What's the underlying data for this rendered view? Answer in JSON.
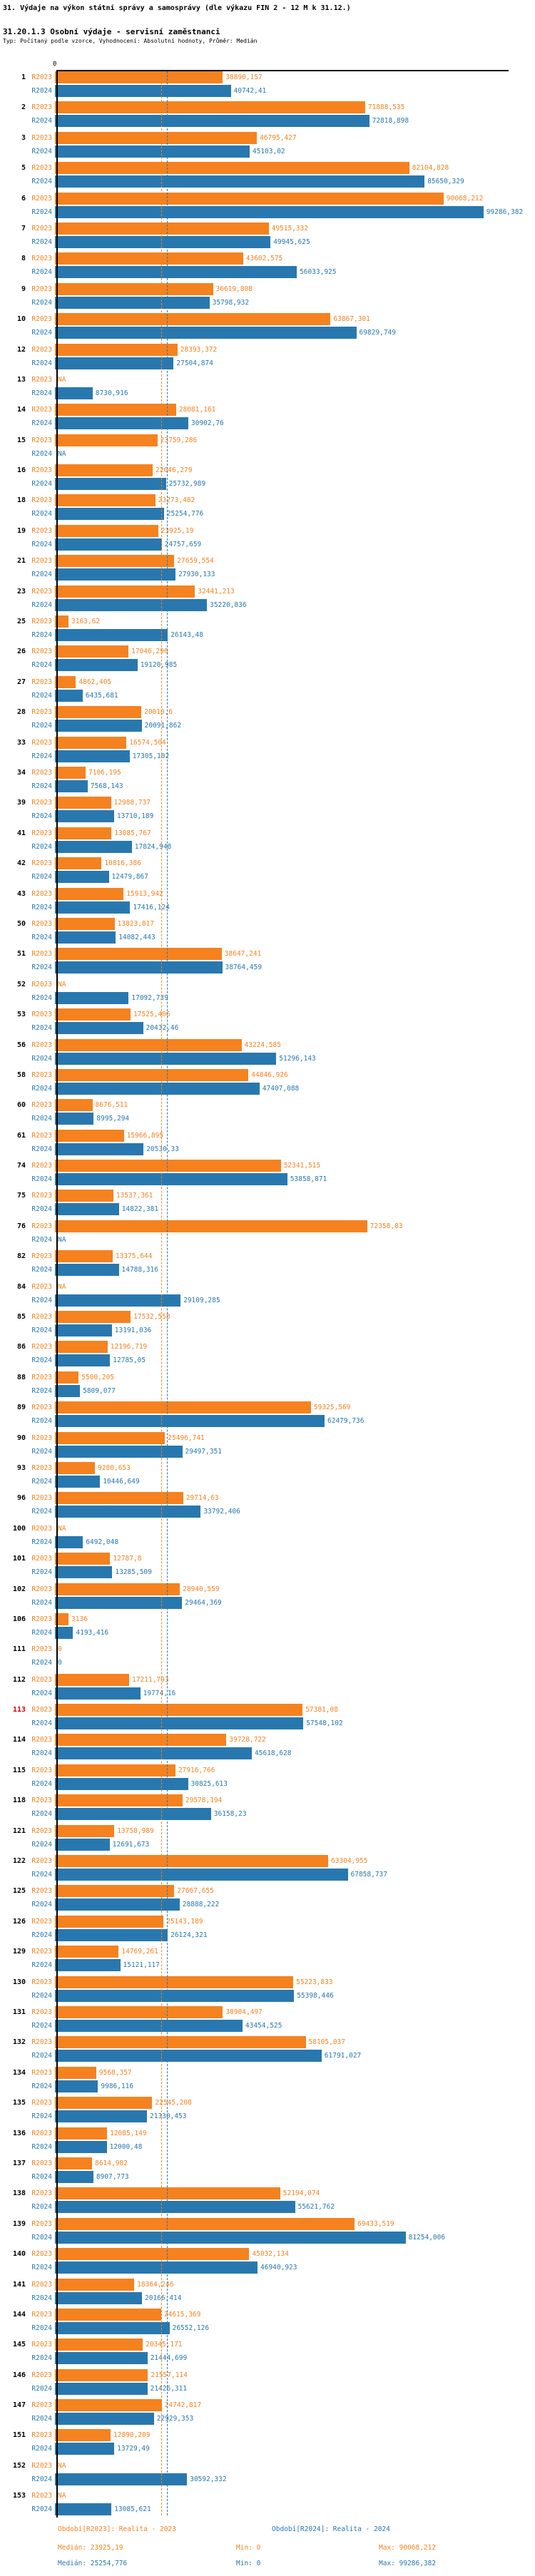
{
  "header": {
    "title": "31. Výdaje na výkon státní správy a samosprávy (dle výkazu FIN 2 - 12 M k 31.12.)",
    "subtitle": "31.20.1.3 Osobní výdaje - servisní zaměstnanci",
    "meta": "Typ: Počítaný podle vzorce, Vyhodnocení: Absolutní hodnoty, Průměr: Medián"
  },
  "chart_data": {
    "type": "bar",
    "orientation": "horizontal",
    "title": "31.20.1.3 Osobní výdaje - servisní zaměstnanci",
    "axis_zero_label": "0",
    "xlim": [
      0,
      100000
    ],
    "grid": false,
    "legend_position": "bottom",
    "series_labels": [
      "R2023",
      "R2024"
    ],
    "colors": {
      "r2023": "#f5821f",
      "r2024": "#2878af",
      "highlight": "#cc0000",
      "axis": "#000000"
    },
    "medians": {
      "r2023": 23925.19,
      "r2024": 25254.776
    },
    "highlight_rows": [
      "113"
    ],
    "na_text": "NA",
    "rows": [
      {
        "n": "1",
        "r2023": "38890,157",
        "r2024": "40742,41"
      },
      {
        "n": "2",
        "r2023": "71888,535",
        "r2024": "72818,898"
      },
      {
        "n": "3",
        "r2023": "46795,427",
        "r2024": "45103,02"
      },
      {
        "n": "5",
        "r2023": "82104,828",
        "r2024": "85650,329"
      },
      {
        "n": "6",
        "r2023": "90068,212",
        "r2024": "99286,382"
      },
      {
        "n": "7",
        "r2023": "49515,332",
        "r2024": "49945,625"
      },
      {
        "n": "8",
        "r2023": "43602,575",
        "r2024": "56033,925"
      },
      {
        "n": "9",
        "r2023": "36619,808",
        "r2024": "35798,932"
      },
      {
        "n": "10",
        "r2023": "63867,301",
        "r2024": "69829,749"
      },
      {
        "n": "12",
        "r2023": "28393,372",
        "r2024": "27504,874"
      },
      {
        "n": "13",
        "r2023": "NA",
        "r2024": "8730,916"
      },
      {
        "n": "14",
        "r2023": "28081,161",
        "r2024": "30902,76"
      },
      {
        "n": "15",
        "r2023": "23759,286",
        "r2024": "NA"
      },
      {
        "n": "16",
        "r2023": "22646,279",
        "r2024": "25732,989"
      },
      {
        "n": "18",
        "r2023": "23273,482",
        "r2024": "25254,776"
      },
      {
        "n": "19",
        "r2023": "23925,19",
        "r2024": "24757,659"
      },
      {
        "n": "21",
        "r2023": "27659,554",
        "r2024": "27930,133"
      },
      {
        "n": "23",
        "r2023": "32441,213",
        "r2024": "35220,836"
      },
      {
        "n": "25",
        "r2023": "3163,62",
        "r2024": "26143,48"
      },
      {
        "n": "26",
        "r2023": "17046,296",
        "r2024": "19120,985"
      },
      {
        "n": "27",
        "r2023": "4862,405",
        "r2024": "6435,681"
      },
      {
        "n": "28",
        "r2023": "20010,6",
        "r2024": "20091,862"
      },
      {
        "n": "33",
        "r2023": "16574,504",
        "r2024": "17305,102"
      },
      {
        "n": "34",
        "r2023": "7106,195",
        "r2024": "7568,143"
      },
      {
        "n": "39",
        "r2023": "12988,737",
        "r2024": "13710,189"
      },
      {
        "n": "41",
        "r2023": "13085,767",
        "r2024": "17824,948"
      },
      {
        "n": "42",
        "r2023": "10816,386",
        "r2024": "12479,867"
      },
      {
        "n": "43",
        "r2023": "15913,942",
        "r2024": "17416,124"
      },
      {
        "n": "50",
        "r2023": "13823,817",
        "r2024": "14082,443"
      },
      {
        "n": "51",
        "r2023": "38647,241",
        "r2024": "38764,459"
      },
      {
        "n": "52",
        "r2023": "NA",
        "r2024": "17092,739"
      },
      {
        "n": "53",
        "r2023": "17525,406",
        "r2024": "20432,46"
      },
      {
        "n": "56",
        "r2023": "43224,585",
        "r2024": "51296,143"
      },
      {
        "n": "58",
        "r2023": "44846,926",
        "r2024": "47407,088"
      },
      {
        "n": "60",
        "r2023": "8676,511",
        "r2024": "8995,294"
      },
      {
        "n": "61",
        "r2023": "15966,895",
        "r2024": "20530,33"
      },
      {
        "n": "74",
        "r2023": "52341,515",
        "r2024": "53858,871"
      },
      {
        "n": "75",
        "r2023": "13537,361",
        "r2024": "14822,381"
      },
      {
        "n": "76",
        "r2023": "72358,83",
        "r2024": "NA"
      },
      {
        "n": "82",
        "r2023": "13375,644",
        "r2024": "14788,316"
      },
      {
        "n": "84",
        "r2023": "NA",
        "r2024": "29109,285"
      },
      {
        "n": "85",
        "r2023": "17532,558",
        "r2024": "13191,036"
      },
      {
        "n": "86",
        "r2023": "12196,719",
        "r2024": "12785,05"
      },
      {
        "n": "88",
        "r2023": "5500,205",
        "r2024": "5809,077"
      },
      {
        "n": "89",
        "r2023": "59325,569",
        "r2024": "62479,736"
      },
      {
        "n": "90",
        "r2023": "25496,741",
        "r2024": "29497,351"
      },
      {
        "n": "93",
        "r2023": "9280,653",
        "r2024": "10446,649"
      },
      {
        "n": "96",
        "r2023": "29714,63",
        "r2024": "33792,406"
      },
      {
        "n": "100",
        "r2023": "NA",
        "r2024": "6492,048"
      },
      {
        "n": "101",
        "r2023": "12787,8",
        "r2024": "13285,509"
      },
      {
        "n": "102",
        "r2023": "28940,559",
        "r2024": "29464,369"
      },
      {
        "n": "106",
        "r2023": "3136",
        "r2024": "4193,416"
      },
      {
        "n": "111",
        "r2023": "0",
        "r2024": "0"
      },
      {
        "n": "112",
        "r2023": "17211,793",
        "r2024": "19774,16"
      },
      {
        "n": "113",
        "r2023": "57381,08",
        "r2024": "57548,102"
      },
      {
        "n": "114",
        "r2023": "39728,722",
        "r2024": "45618,628"
      },
      {
        "n": "115",
        "r2023": "27916,766",
        "r2024": "30825,613"
      },
      {
        "n": "118",
        "r2023": "29578,194",
        "r2024": "36158,23"
      },
      {
        "n": "121",
        "r2023": "13758,989",
        "r2024": "12691,673"
      },
      {
        "n": "122",
        "r2023": "63304,955",
        "r2024": "67858,737"
      },
      {
        "n": "125",
        "r2023": "27667,655",
        "r2024": "28888,222"
      },
      {
        "n": "126",
        "r2023": "25143,189",
        "r2024": "26124,321"
      },
      {
        "n": "129",
        "r2023": "14769,261",
        "r2024": "15121,117"
      },
      {
        "n": "130",
        "r2023": "55223,833",
        "r2024": "55398,446"
      },
      {
        "n": "131",
        "r2023": "38904,497",
        "r2024": "43454,525"
      },
      {
        "n": "132",
        "r2023": "58105,037",
        "r2024": "61791,027"
      },
      {
        "n": "134",
        "r2023": "9568,357",
        "r2024": "9986,116"
      },
      {
        "n": "135",
        "r2023": "22545,208",
        "r2024": "21330,453"
      },
      {
        "n": "136",
        "r2023": "12085,149",
        "r2024": "12000,48"
      },
      {
        "n": "137",
        "r2023": "8614,982",
        "r2024": "8907,773"
      },
      {
        "n": "138",
        "r2023": "52194,074",
        "r2024": "55621,762"
      },
      {
        "n": "139",
        "r2023": "69433,519",
        "r2024": "81254,006"
      },
      {
        "n": "140",
        "r2023": "45032,134",
        "r2024": "46940,923"
      },
      {
        "n": "141",
        "r2023": "18364,246",
        "r2024": "20166,414"
      },
      {
        "n": "144",
        "r2023": "24615,369",
        "r2024": "26552,126"
      },
      {
        "n": "145",
        "r2023": "20345,171",
        "r2024": "21444,699"
      },
      {
        "n": "146",
        "r2023": "21557,114",
        "r2024": "21426,311"
      },
      {
        "n": "147",
        "r2023": "24742,817",
        "r2024": "22929,353"
      },
      {
        "n": "151",
        "r2023": "12890,209",
        "r2024": "13729,49"
      },
      {
        "n": "152",
        "r2023": "NA",
        "r2024": "30592,332"
      },
      {
        "n": "153",
        "r2023": "NA",
        "r2024": "13085,621"
      }
    ]
  },
  "footer": {
    "period_r2023": "Období[R2023]: Realita - 2023",
    "period_r2024": "Období[R2024]: Realita - 2024",
    "r2023_stats": {
      "median_label": "Medián: 23925,19",
      "min_label": "Min: 0",
      "max_label": "Max: 90068,212"
    },
    "r2024_stats": {
      "median_label": "Medián: 25254,776",
      "min_label": "Min: 0",
      "max_label": "Max: 99286,382"
    }
  }
}
